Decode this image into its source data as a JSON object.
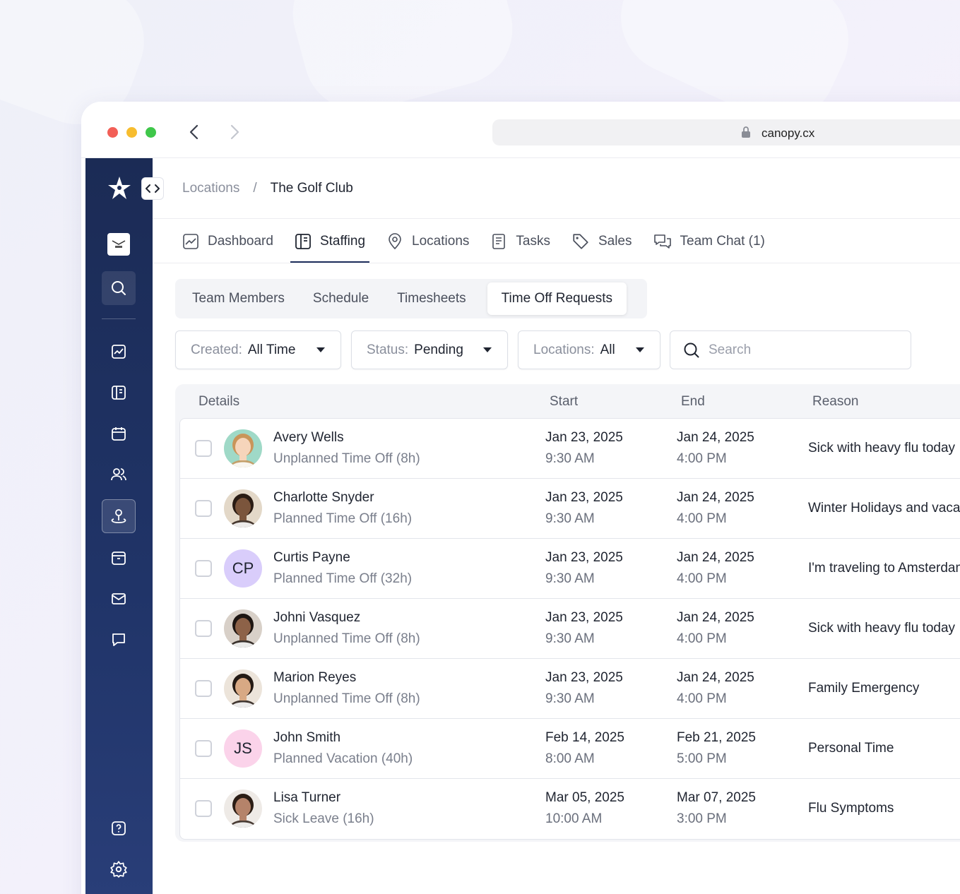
{
  "browser": {
    "url": "canopy.cx"
  },
  "breadcrumb": {
    "parent": "Locations",
    "separator": "/",
    "current": "The Golf Club"
  },
  "tabs": [
    {
      "label": "Dashboard",
      "icon": "chart-icon"
    },
    {
      "label": "Staffing",
      "icon": "staffing-icon",
      "active": true
    },
    {
      "label": "Locations",
      "icon": "map-pin-icon"
    },
    {
      "label": "Tasks",
      "icon": "document-icon"
    },
    {
      "label": "Sales",
      "icon": "tag-icon"
    },
    {
      "label": "Team Chat (1)",
      "icon": "chat-icon"
    }
  ],
  "subtabs": [
    "Team Members",
    "Schedule",
    "Timesheets",
    "Time Off Requests"
  ],
  "active_subtab": "Time Off Requests",
  "filters": {
    "created": {
      "label": "Created:",
      "value": "All Time"
    },
    "status": {
      "label": "Status:",
      "value": "Pending"
    },
    "locations": {
      "label": "Locations:",
      "value": "All"
    },
    "search_placeholder": "Search"
  },
  "table": {
    "headers": {
      "details": "Details",
      "start": "Start",
      "end": "End",
      "reason": "Reason"
    },
    "rows": [
      {
        "name": "Avery Wells",
        "type": "Unplanned Time Off (8h)",
        "start_date": "Jan 23, 2025",
        "start_time": "9:30 AM",
        "end_date": "Jan 24, 2025",
        "end_time": "4:00 PM",
        "reason": "Sick with heavy flu today",
        "initials": "",
        "avatar_color": "#f2c9a8"
      },
      {
        "name": "Charlotte Snyder",
        "type": "Planned Time Off (16h)",
        "start_date": "Jan 23, 2025",
        "start_time": "9:30 AM",
        "end_date": "Jan 24, 2025",
        "end_time": "4:00 PM",
        "reason": "Winter Holidays and vacation",
        "initials": "",
        "avatar_color": "#6b4a36"
      },
      {
        "name": "Curtis Payne",
        "type": "Planned Time Off (32h)",
        "start_date": "Jan 23, 2025",
        "start_time": "9:30 AM",
        "end_date": "Jan 24, 2025",
        "end_time": "4:00 PM",
        "reason": "I'm traveling to Amsterdam",
        "initials": "CP",
        "avatar_color": "#d9cdfb"
      },
      {
        "name": "Johni Vasquez",
        "type": "Unplanned Time Off (8h)",
        "start_date": "Jan 23, 2025",
        "start_time": "9:30 AM",
        "end_date": "Jan 24, 2025",
        "end_time": "4:00 PM",
        "reason": "Sick with heavy flu today",
        "initials": "",
        "avatar_color": "#4a3a30"
      },
      {
        "name": "Marion Reyes",
        "type": "Unplanned Time Off (8h)",
        "start_date": "Jan 23, 2025",
        "start_time": "9:30 AM",
        "end_date": "Jan 24, 2025",
        "end_time": "4:00 PM",
        "reason": "Family Emergency",
        "initials": "",
        "avatar_color": "#c7b8a4"
      },
      {
        "name": "John Smith",
        "type": "Planned Vacation (40h)",
        "start_date": "Feb 14, 2025",
        "start_time": "8:00 AM",
        "end_date": "Feb 21, 2025",
        "end_time": "5:00 PM",
        "reason": "Personal Time",
        "initials": "JS",
        "avatar_color": "#fbd3ea"
      },
      {
        "name": "Lisa Turner",
        "type": "Sick Leave (16h)",
        "start_date": "Mar 05, 2025",
        "start_time": "10:00 AM",
        "end_date": "Mar 07, 2025",
        "end_time": "3:00 PM",
        "reason": "Flu Symptoms",
        "initials": "",
        "avatar_color": "#7a5a44"
      }
    ]
  }
}
